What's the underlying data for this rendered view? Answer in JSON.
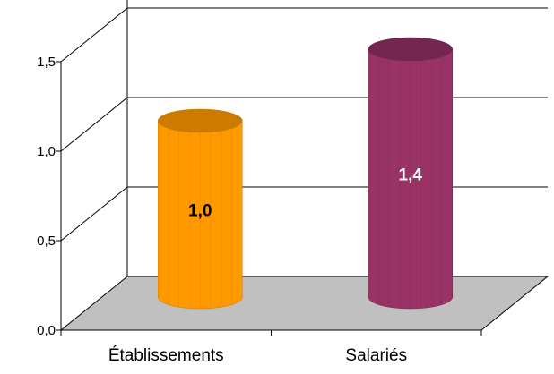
{
  "chart_data": {
    "type": "bar",
    "style": "3d-cylinder",
    "categories": [
      "Établissements",
      "Salariés"
    ],
    "values": [
      1.0,
      1.4
    ],
    "data_labels": [
      "1,0",
      "1,4"
    ],
    "yticks": [
      "0,0",
      "0,5",
      "1,0",
      "1,5"
    ],
    "ytick_values": [
      0,
      0.5,
      1.0,
      1.5
    ],
    "ylim": [
      0,
      2.0
    ],
    "grid": true,
    "legend": "none",
    "title": "",
    "xlabel": "",
    "ylabel": "",
    "colors": {
      "bars": [
        "#ff9900",
        "#993366"
      ],
      "bar_tops": [
        "#cc7a00",
        "#732650"
      ],
      "data_label_colors": [
        "#000000",
        "#ffffff"
      ],
      "floor": "#c0c0c0",
      "grid": "#000000",
      "background": "#ffffff"
    }
  }
}
